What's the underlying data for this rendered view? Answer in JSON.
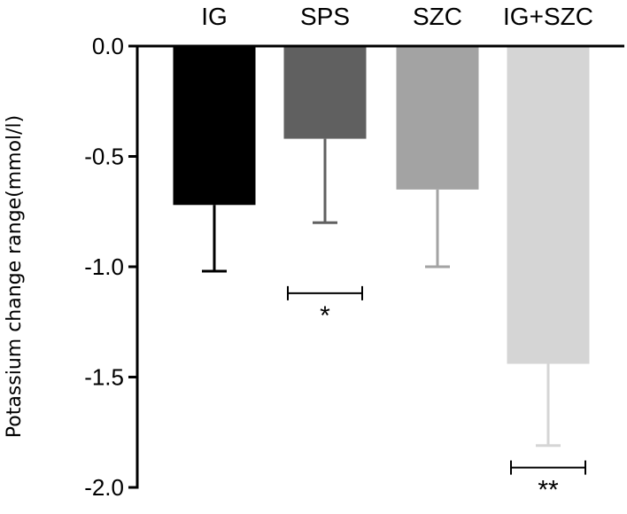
{
  "chart_data": {
    "type": "bar",
    "title": "",
    "xlabel": "",
    "ylabel": "Potassium change range(mmol/l)",
    "categories": [
      "IG",
      "SPS",
      "SZC",
      "IG+SZC"
    ],
    "values": [
      -0.72,
      -0.42,
      -0.65,
      -1.44
    ],
    "error": [
      0.3,
      0.38,
      0.35,
      0.37
    ],
    "colors": [
      "#000000",
      "#606060",
      "#a3a3a3",
      "#d5d5d5"
    ],
    "error_colors": [
      "#000000",
      "#606060",
      "#a3a3a3",
      "#d5d5d5"
    ],
    "ylim": [
      -2.0,
      0.0
    ],
    "yticks": [
      "0.0",
      "-0.5",
      "-1.0",
      "-1.5",
      "-2.0"
    ],
    "ytick_values": [
      0.0,
      -0.5,
      -1.0,
      -1.5,
      -2.0
    ],
    "grid": false,
    "legend": "none",
    "annotations": [
      {
        "category_index": 1,
        "text": "*",
        "bracket_at": -1.12
      },
      {
        "category_index": 3,
        "text": "**",
        "bracket_at": -1.91
      }
    ]
  }
}
